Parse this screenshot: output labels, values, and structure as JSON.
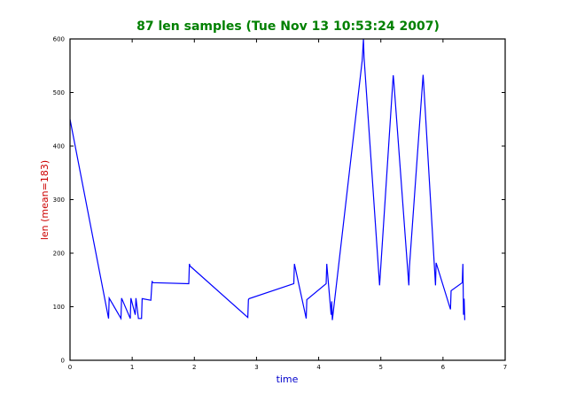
{
  "chart_data": {
    "type": "line",
    "title": "87 len samples (Tue Nov 13 10:53:24 2007)",
    "xlabel": "time",
    "ylabel": "len (mean=183)",
    "xlim": [
      0,
      7
    ],
    "ylim": [
      0,
      600
    ],
    "xticks": [
      0,
      1,
      2,
      3,
      4,
      5,
      6,
      7
    ],
    "yticks": [
      0,
      100,
      200,
      300,
      400,
      500,
      600
    ],
    "grid": false,
    "colors": {
      "title": "#008000",
      "xlabel": "#0000cc",
      "ylabel": "#cc0000",
      "series": "#0000ff"
    },
    "series": [
      {
        "values_xy": [
          [
            0.0,
            450
          ],
          [
            0.62,
            78
          ],
          [
            0.63,
            116
          ],
          [
            0.82,
            78
          ],
          [
            0.83,
            116
          ],
          [
            0.97,
            78
          ],
          [
            0.98,
            116
          ],
          [
            1.05,
            85
          ],
          [
            1.06,
            116
          ],
          [
            1.1,
            78
          ],
          [
            1.15,
            78
          ],
          [
            1.16,
            115
          ],
          [
            1.3,
            112
          ],
          [
            1.31,
            130
          ],
          [
            1.32,
            148
          ],
          [
            1.33,
            145
          ],
          [
            1.91,
            143
          ],
          [
            1.92,
            180
          ],
          [
            1.93,
            176
          ],
          [
            2.86,
            80
          ],
          [
            2.87,
            113
          ],
          [
            2.88,
            115
          ],
          [
            3.6,
            143
          ],
          [
            3.61,
            180
          ],
          [
            3.8,
            78
          ],
          [
            3.81,
            113
          ],
          [
            4.12,
            143
          ],
          [
            4.13,
            180
          ],
          [
            4.2,
            85
          ],
          [
            4.21,
            110
          ],
          [
            4.22,
            75
          ],
          [
            4.7,
            560
          ],
          [
            4.72,
            600
          ],
          [
            4.73,
            565
          ],
          [
            4.98,
            140
          ],
          [
            5.2,
            532
          ],
          [
            5.21,
            520
          ],
          [
            5.45,
            140
          ],
          [
            5.46,
            175
          ],
          [
            5.68,
            533
          ],
          [
            5.69,
            515
          ],
          [
            5.88,
            140
          ],
          [
            5.89,
            182
          ],
          [
            6.12,
            95
          ],
          [
            6.13,
            130
          ],
          [
            6.31,
            145
          ],
          [
            6.32,
            180
          ],
          [
            6.33,
            85
          ],
          [
            6.34,
            115
          ],
          [
            6.35,
            75
          ]
        ]
      }
    ]
  }
}
